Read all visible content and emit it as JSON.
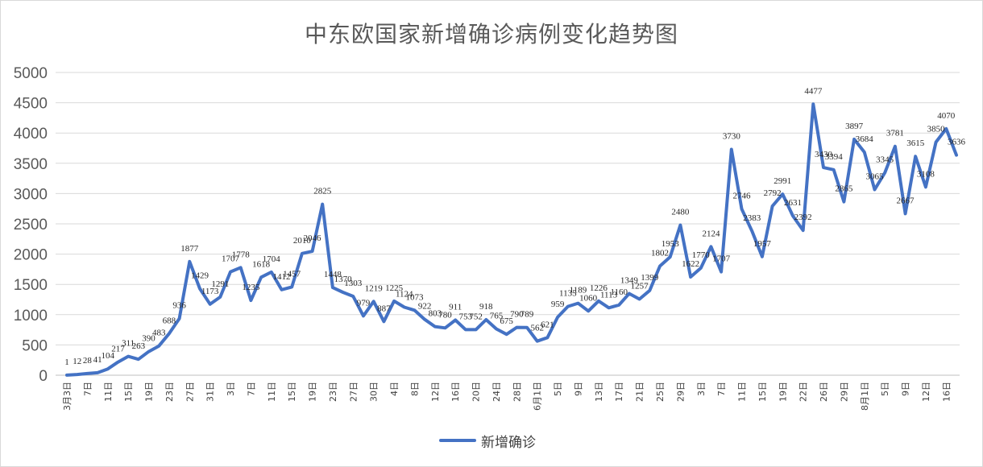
{
  "chart_data": {
    "type": "line",
    "title": "中东欧国家新增确诊病例变化趋势图",
    "ylim": [
      0,
      5000
    ],
    "y_ticks": [
      0,
      500,
      1000,
      1500,
      2000,
      2500,
      3000,
      3500,
      4000,
      4500,
      5000
    ],
    "grid": true,
    "legend_position": "bottom",
    "x_tick_labels": [
      "3月3日",
      "7日",
      "11日",
      "15日",
      "19日",
      "23日",
      "27日",
      "31日",
      "3日",
      "7日",
      "11日",
      "15日",
      "19日",
      "23日",
      "27日",
      "30日",
      "4日",
      "8日",
      "12日",
      "16日",
      "20日",
      "24日",
      "28日",
      "6月1日",
      "5日",
      "9日",
      "13日",
      "17日",
      "21日",
      "25日",
      "29日",
      "3日",
      "7日",
      "11日",
      "15日",
      "19日",
      "22日",
      "26日",
      "29日",
      "8月1日",
      "5日",
      "9日",
      "12日",
      "16日"
    ],
    "series": [
      {
        "name": "新增确诊",
        "color": "#4472c4",
        "values": [
          1,
          12,
          28,
          41,
          104,
          217,
          311,
          263,
          390,
          483,
          688,
          936,
          1877,
          1429,
          1173,
          1291,
          1707,
          1778,
          1235,
          1618,
          1704,
          1412,
          1457,
          2010,
          2046,
          2825,
          1448,
          1370,
          1303,
          979,
          1219,
          887,
          1225,
          1124,
          1073,
          922,
          803,
          780,
          911,
          753,
          752,
          918,
          765,
          675,
          790,
          789,
          562,
          621,
          959,
          1135,
          1189,
          1060,
          1226,
          1113,
          1160,
          1349,
          1257,
          1399,
          1802,
          1953,
          2480,
          1622,
          1770,
          2124,
          1707,
          3730,
          2746,
          2383,
          1957,
          2792,
          2991,
          2631,
          2392,
          4477,
          3430,
          3394,
          2865,
          3897,
          3684,
          3065,
          3345,
          3781,
          2667,
          3615,
          3108,
          3850,
          4070,
          3636
        ]
      }
    ]
  }
}
